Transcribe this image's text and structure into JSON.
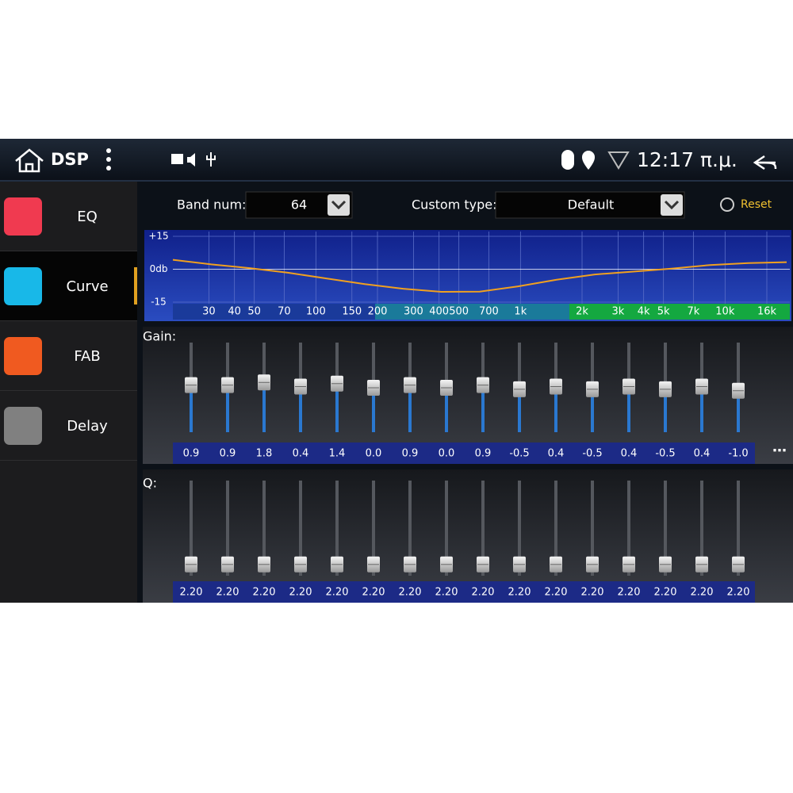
{
  "status_bar": {
    "title": "DSP",
    "time": "12:17 π.μ."
  },
  "sidebar": {
    "items": [
      "EQ",
      "Curve",
      "FAB",
      "Delay"
    ],
    "active": 1
  },
  "controls": {
    "band_num_label": "Band num:",
    "band_num": 64,
    "custom_type_label": "Custom type:",
    "custom_type": "Default",
    "reset": "Reset"
  },
  "curve": {
    "xlim": [
      20,
      20000
    ],
    "ylim": [
      -15,
      15
    ],
    "yticks": [
      {
        "value": 15,
        "label": "+15"
      },
      {
        "value": 0,
        "label": "0db"
      },
      -15
    ],
    "xticks": [
      30,
      40,
      50,
      70,
      100,
      150,
      200,
      300,
      400,
      500,
      700,
      {
        "value": 1000,
        "label": "1k"
      },
      {
        "value": 2000,
        "label": "2k"
      },
      {
        "value": 3000,
        "label": "3k"
      },
      {
        "value": 4000,
        "label": "4k"
      },
      {
        "value": 5000,
        "label": "5k"
      },
      {
        "value": 7000,
        "label": "7k"
      },
      {
        "value": 10000,
        "label": "10k"
      },
      {
        "value": 16000,
        "label": "16k"
      }
    ],
    "color": "#f0a020",
    "values": [
      4.3,
      2.2,
      0.5,
      -1.6,
      -4.2,
      -6.8,
      -8.9,
      -10.3,
      -10.2,
      -7.8,
      -4.8,
      -2.4,
      -1.1,
      0.3,
      1.9,
      2.8,
      3.2
    ]
  },
  "gain": {
    "label": "Gain:",
    "values": [
      0.9,
      0.9,
      1.8,
      0.4,
      1.4,
      0.0,
      0.9,
      0.0,
      0.9,
      -0.5,
      0.4,
      -0.5,
      0.4,
      -0.5,
      0.4,
      -1.0
    ],
    "value_labels": [
      "0.9",
      "0.9",
      "1.8",
      "0.4",
      "1.4",
      "0.0",
      "0.9",
      "0.0",
      "0.9",
      "-0.5",
      "0.4",
      "-0.5",
      "0.4",
      "-0.5",
      "0.4",
      "-1.0"
    ]
  },
  "q": {
    "label": "Q:",
    "values": [
      2.2,
      2.2,
      2.2,
      2.2,
      2.2,
      2.2,
      2.2,
      2.2,
      2.2,
      2.2,
      2.2,
      2.2,
      2.2,
      2.2,
      2.2,
      2.2
    ],
    "value_labels": [
      "2.20",
      "2.20",
      "2.20",
      "2.20",
      "2.20",
      "2.20",
      "2.20",
      "2.20",
      "2.20",
      "2.20",
      "2.20",
      "2.20",
      "2.20",
      "2.20",
      "2.20",
      "2.20"
    ]
  }
}
